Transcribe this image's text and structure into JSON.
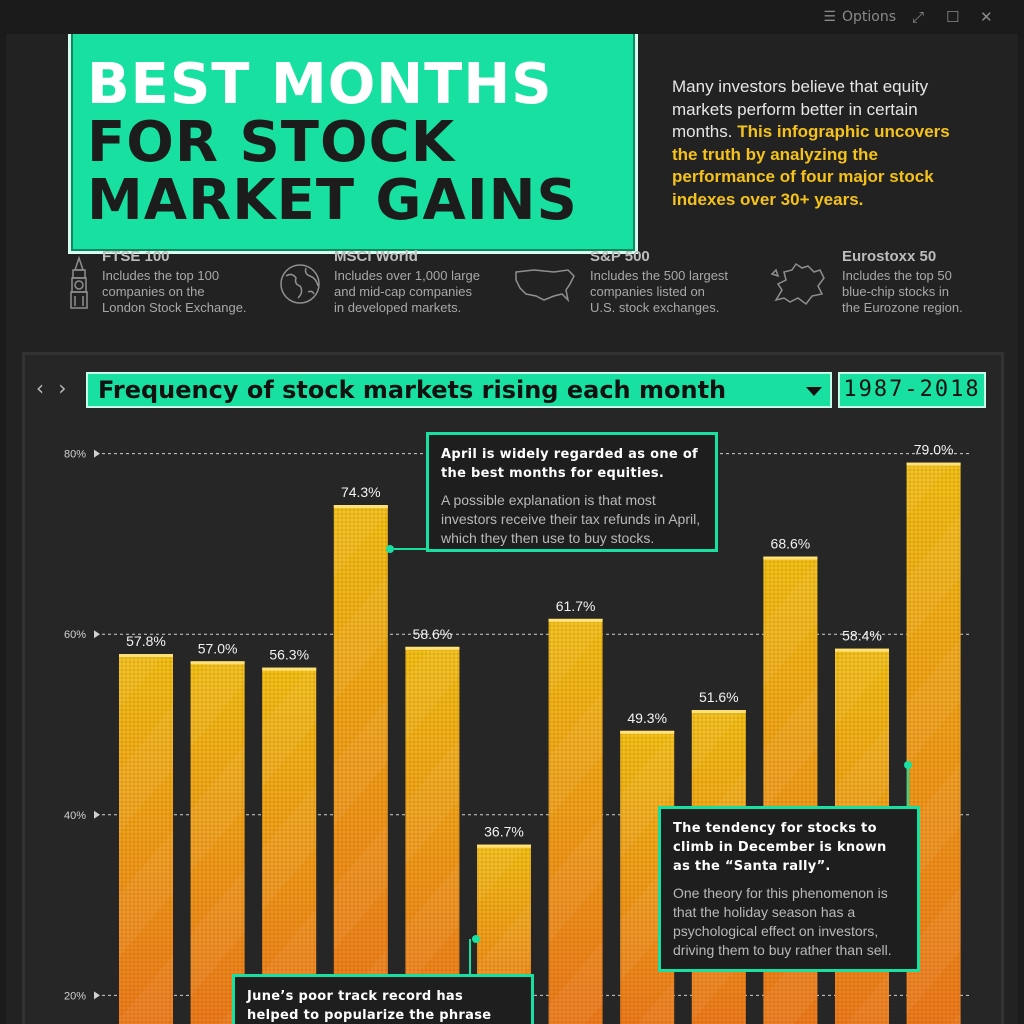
{
  "window": {
    "options_label": "Options",
    "menu_glyph": "☰",
    "expand_glyph": "⤢",
    "maximize_glyph": "☐",
    "close_glyph": "✕"
  },
  "header": {
    "title_lines": [
      "BEST MONTHS",
      "FOR STOCK",
      "MARKET GAINS"
    ],
    "intro_plain": "Many investors believe that equity markets perform better in certain months.",
    "intro_highlight": "This infographic uncovers the truth by analyzing the performance of four major stock indexes over 30+ years."
  },
  "indexes": [
    {
      "name": "FTSE 100",
      "desc": [
        "Includes the top 100",
        "companies on the",
        "London Stock Exchange."
      ],
      "icon": "big-ben-icon"
    },
    {
      "name": "MSCI World",
      "desc": [
        "Includes over 1,000 large",
        "and mid-cap companies",
        "in developed markets."
      ],
      "icon": "globe-icon"
    },
    {
      "name": "S&P 500",
      "desc": [
        "Includes the 500 largest",
        "companies listed on",
        "U.S. stock exchanges."
      ],
      "icon": "usa-map-icon"
    },
    {
      "name": "Eurostoxx 50",
      "desc": [
        "Includes the top 50",
        "blue-chip stocks in",
        "the Eurozone region."
      ],
      "icon": "europe-map-icon"
    }
  ],
  "controls": {
    "nav_glyph": "‹ ›",
    "chart_selector": "Frequency of stock markets rising each month",
    "year_range": "1987-2018"
  },
  "chart_data": {
    "type": "bar",
    "title": "Frequency of stock markets rising each month",
    "subtitle": "1987-2018",
    "values": [
      57.8,
      57.0,
      56.3,
      74.3,
      58.6,
      36.7,
      61.7,
      49.3,
      51.6,
      68.6,
      58.4,
      79.0
    ],
    "value_labels": [
      "57.8%",
      "57.0%",
      "56.3%",
      "74.3%",
      "58.6%",
      "36.7%",
      "61.7%",
      "49.3%",
      "51.6%",
      "68.6%",
      "58.4%",
      "79.0%"
    ],
    "y_ticks": [
      20,
      40,
      60,
      80
    ],
    "y_tick_labels": [
      "20%",
      "40%",
      "60%",
      "80%"
    ],
    "ylim": [
      0,
      80
    ],
    "grid": true,
    "bar_colors": {
      "top": "#f5c518",
      "bottom": "#f07a1e"
    }
  },
  "annotations": {
    "april": {
      "head": "April is widely regarded as one of the best months for equities.",
      "body": "A possible explanation is that most investors receive their tax refunds in April, which they then use to buy stocks."
    },
    "december": {
      "head": "The tendency for stocks to climb in December is known as the “Santa rally”.",
      "body": "One theory for this phenomenon is that the holiday season has a psychological effect on investors, driving them to buy rather than sell."
    },
    "june": {
      "head": "June’s poor track record has helped to popularize the phrase"
    }
  },
  "colors": {
    "accent": "#18e0a0",
    "background": "#222222",
    "highlight": "#f4c21a"
  }
}
